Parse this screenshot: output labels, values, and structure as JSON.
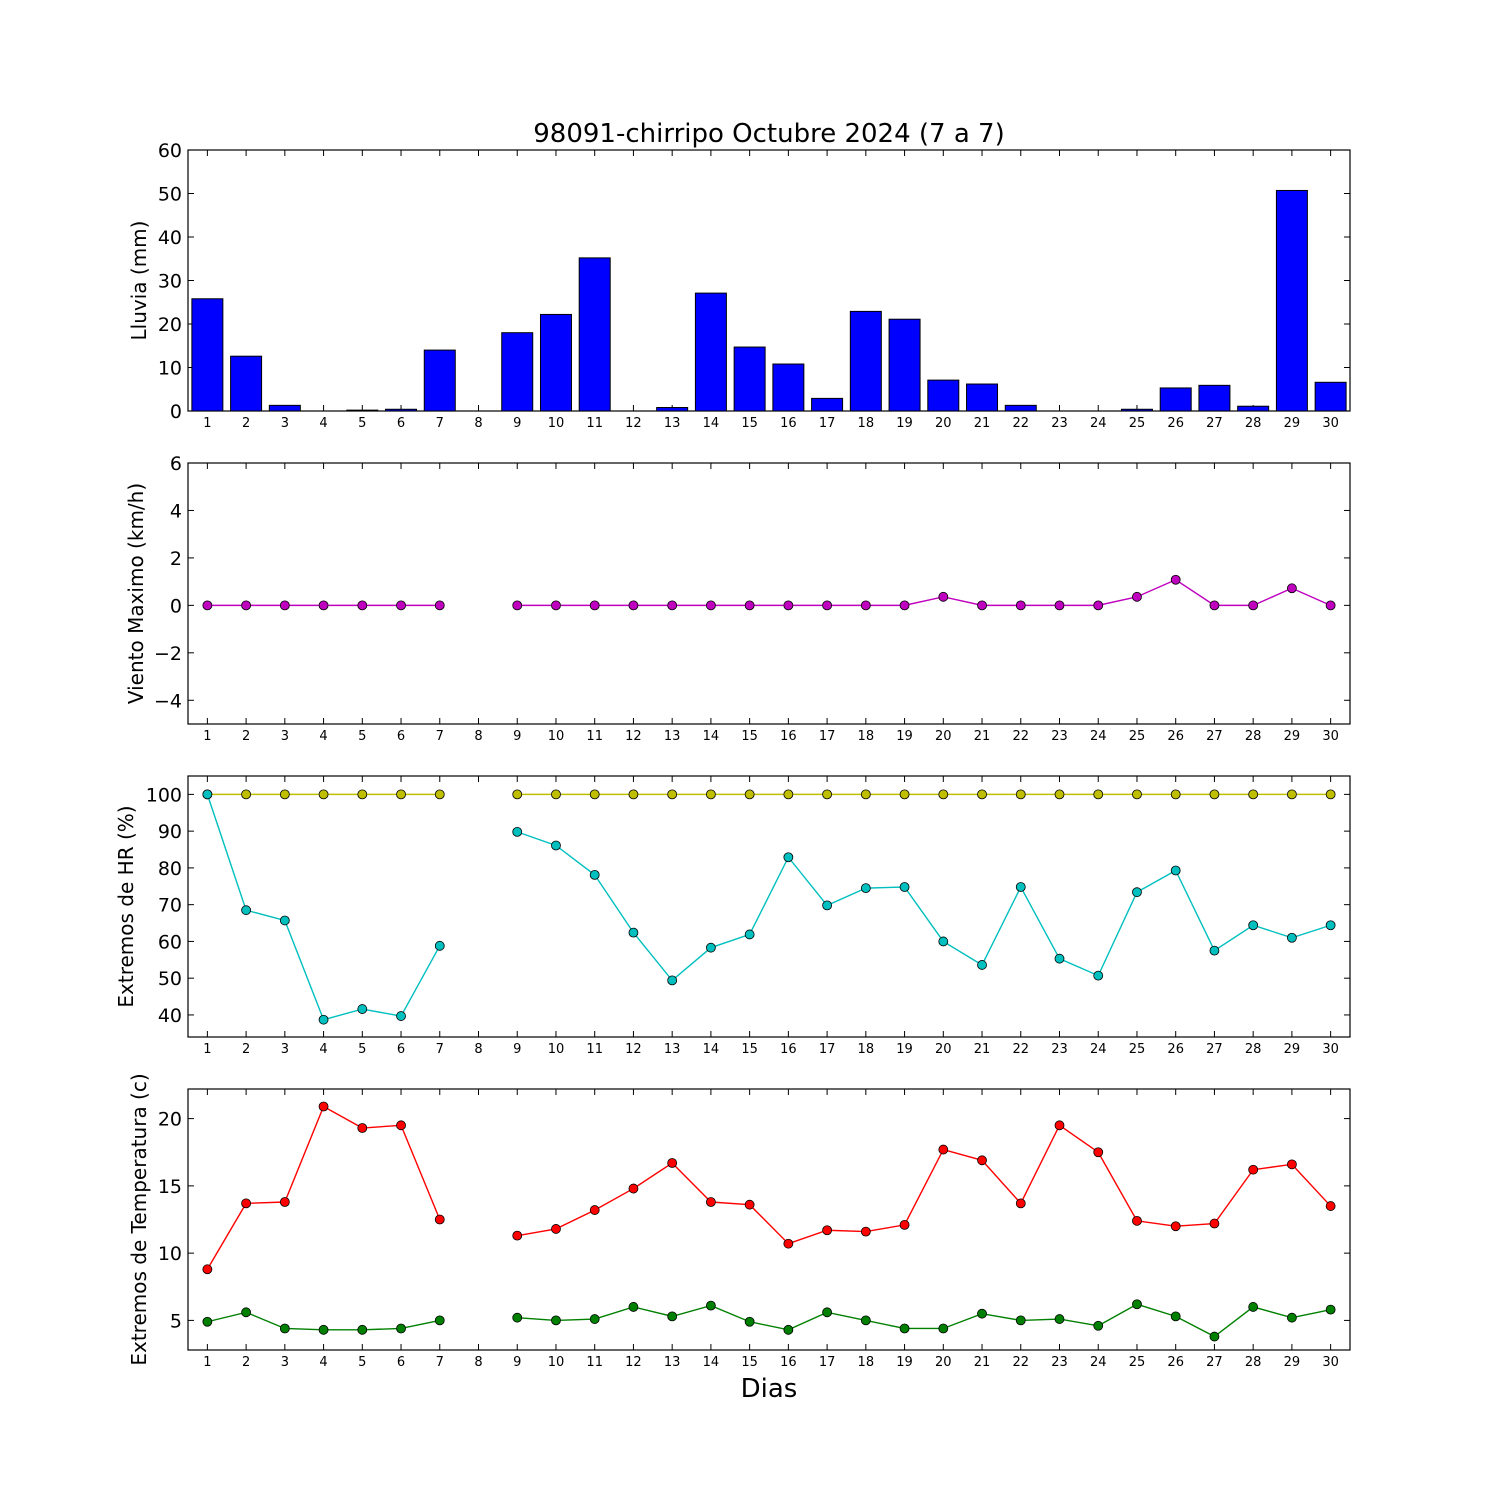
{
  "chart_data": {
    "title": "98091-chirripo Octubre 2024  (7 a 7)",
    "xlabel": "Dias",
    "days": [
      1,
      2,
      3,
      4,
      5,
      6,
      7,
      8,
      9,
      10,
      11,
      12,
      13,
      14,
      15,
      16,
      17,
      18,
      19,
      20,
      21,
      22,
      23,
      24,
      25,
      26,
      27,
      28,
      29,
      30
    ],
    "panels": [
      {
        "key": "lluvia",
        "type": "bar",
        "ylabel": "Lluvia (mm)",
        "ylim": [
          0,
          60
        ],
        "yticks": [
          0,
          10,
          20,
          30,
          40,
          50,
          60
        ],
        "ytick_labels": [
          "0",
          "10",
          "20",
          "30",
          "40",
          "50",
          "60"
        ],
        "series": [
          {
            "color": "#0000ff",
            "values": [
              25.8,
              12.6,
              1.3,
              0,
              0.2,
              0.4,
              14.0,
              null,
              18.0,
              22.2,
              35.2,
              0,
              0.8,
              27.1,
              14.7,
              10.8,
              2.9,
              22.9,
              21.1,
              7.1,
              6.2,
              1.3,
              0,
              0,
              0.4,
              5.3,
              5.9,
              1.1,
              50.7,
              6.6
            ]
          }
        ]
      },
      {
        "key": "viento",
        "type": "line",
        "ylabel": "Viento Maximo (km/h)",
        "ylim": [
          -5,
          6
        ],
        "yticks": [
          -4,
          -2,
          0,
          2,
          4,
          6
        ],
        "ytick_labels": [
          "−4",
          "−2",
          "0",
          "2",
          "4",
          "6"
        ],
        "series": [
          {
            "color": "#bf00bf",
            "values": [
              0,
              0,
              0,
              0,
              0,
              0,
              0,
              null,
              0,
              0,
              0,
              0,
              0,
              0,
              0,
              0,
              0,
              0,
              0,
              0.36,
              0,
              0,
              0,
              0,
              0.36,
              1.08,
              0,
              0,
              0.72,
              0
            ]
          }
        ]
      },
      {
        "key": "hr",
        "type": "line",
        "ylabel": "Extremos de HR (%)",
        "ylim": [
          34,
          105
        ],
        "yticks": [
          40,
          50,
          60,
          70,
          80,
          90,
          100
        ],
        "ytick_labels": [
          "40",
          "50",
          "60",
          "70",
          "80",
          "90",
          "100"
        ],
        "series": [
          {
            "color": "#bfbf00",
            "values": [
              100,
              100,
              100,
              100,
              100,
              100,
              100,
              null,
              100,
              100,
              100,
              100,
              100,
              100,
              100,
              100,
              100,
              100,
              100,
              100,
              100,
              100,
              100,
              100,
              100,
              100,
              100,
              100,
              100,
              100
            ]
          },
          {
            "color": "#00bfbf",
            "values": [
              100,
              68.5,
              65.7,
              38.7,
              41.6,
              39.7,
              58.8,
              null,
              89.8,
              86.1,
              78.1,
              62.4,
              49.4,
              58.3,
              61.9,
              82.9,
              69.8,
              74.5,
              74.8,
              60.0,
              53.6,
              74.8,
              55.3,
              50.7,
              73.4,
              79.3,
              57.5,
              64.4,
              61.0,
              64.4
            ]
          }
        ]
      },
      {
        "key": "temp",
        "type": "line",
        "ylabel": "Extremos de Temperatura (c)",
        "ylim": [
          2.8,
          22.2
        ],
        "yticks": [
          5,
          10,
          15,
          20
        ],
        "ytick_labels": [
          "5",
          "10",
          "15",
          "20"
        ],
        "series": [
          {
            "color": "#ff0000",
            "values": [
              8.8,
              13.7,
              13.8,
              20.9,
              19.3,
              19.5,
              12.5,
              null,
              11.3,
              11.8,
              13.2,
              14.8,
              16.7,
              13.8,
              13.6,
              10.7,
              11.7,
              11.6,
              12.1,
              17.7,
              16.9,
              13.7,
              19.5,
              17.5,
              12.4,
              12.0,
              12.2,
              16.2,
              16.6,
              13.5
            ]
          },
          {
            "color": "#008000",
            "values": [
              4.9,
              5.6,
              4.4,
              4.3,
              4.3,
              4.4,
              5.0,
              null,
              5.2,
              5.0,
              5.1,
              6.0,
              5.3,
              6.1,
              4.9,
              4.3,
              5.6,
              5.0,
              4.4,
              4.4,
              5.5,
              5.0,
              5.1,
              4.6,
              6.2,
              5.3,
              3.8,
              6.0,
              5.2,
              5.8
            ]
          }
        ]
      }
    ]
  }
}
